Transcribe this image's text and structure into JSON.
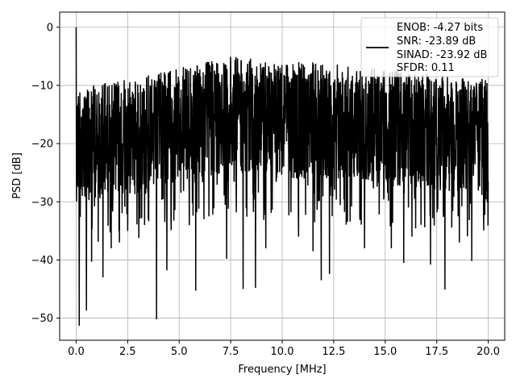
{
  "chart_data": {
    "type": "line",
    "xlabel": "Frequency [MHz]",
    "ylabel": "PSD [dB]",
    "xlim": [
      -0.8,
      20.8
    ],
    "ylim": [
      -53.8,
      2.6
    ],
    "xticks": [
      0.0,
      2.5,
      5.0,
      7.5,
      10.0,
      12.5,
      15.0,
      17.5,
      20.0
    ],
    "xtick_labels": [
      "0.0",
      "2.5",
      "5.0",
      "7.5",
      "10.0",
      "12.5",
      "15.0",
      "17.5",
      "20.0"
    ],
    "yticks": [
      0,
      -10,
      -20,
      -30,
      -40,
      -50
    ],
    "ytick_labels": [
      "0",
      "−10",
      "−20",
      "−30",
      "−40",
      "−50"
    ],
    "grid": true,
    "legend_position": "top-right",
    "legend_lines": [
      "ENOB: -4.27 bits",
      "SNR: -23.89 dB",
      "SINAD: -23.92 dB",
      "SFDR: 0.11"
    ],
    "series_color": "#000000",
    "series": [
      {
        "name": "",
        "x_range": [
          0.0,
          20.0
        ],
        "points": 2000,
        "start_value": 0.0,
        "typical_max": -9,
        "typical_min": -28,
        "envelope_top": [
          [
            0,
            -10
          ],
          [
            2.5,
            -9
          ],
          [
            5.0,
            -7
          ],
          [
            7.5,
            -5
          ],
          [
            10.0,
            -6
          ],
          [
            12.5,
            -6
          ],
          [
            15.0,
            -7
          ],
          [
            17.5,
            -8
          ],
          [
            20.0,
            -9
          ]
        ],
        "notable_dips": [
          [
            0.15,
            -51.3
          ],
          [
            0.5,
            -48.7
          ],
          [
            0.75,
            -40.3
          ],
          [
            1.3,
            -43
          ],
          [
            1.7,
            -38
          ],
          [
            2.1,
            -37
          ],
          [
            2.5,
            -35
          ],
          [
            3.5,
            -33
          ],
          [
            3.9,
            -50.2
          ],
          [
            4.4,
            -41.8
          ],
          [
            5.8,
            -45.3
          ],
          [
            6.2,
            -33
          ],
          [
            7.3,
            -39.8
          ],
          [
            8.1,
            -45
          ],
          [
            8.7,
            -44.8
          ],
          [
            9.2,
            -38
          ],
          [
            10.8,
            -36
          ],
          [
            11.5,
            -38.5
          ],
          [
            11.9,
            -43.5
          ],
          [
            12.3,
            -42.4
          ],
          [
            14.0,
            -38
          ],
          [
            15.3,
            -38
          ],
          [
            15.9,
            -40.5
          ],
          [
            16.3,
            -36
          ],
          [
            17.2,
            -40.8
          ],
          [
            17.9,
            -45.1
          ],
          [
            18.6,
            -37
          ],
          [
            19.2,
            -40.2
          ]
        ]
      }
    ]
  }
}
